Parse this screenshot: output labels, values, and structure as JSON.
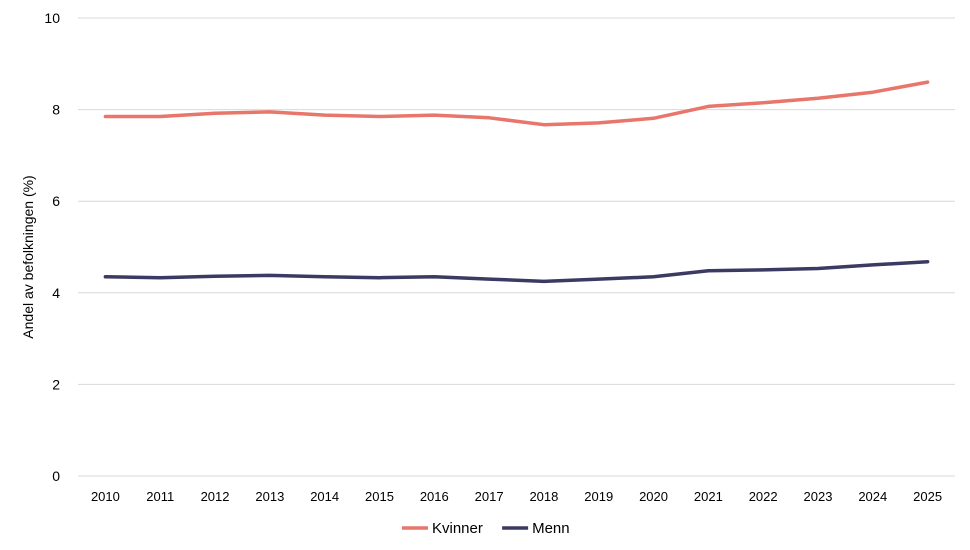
{
  "chart_data": {
    "type": "line",
    "title": "",
    "xlabel": "",
    "ylabel": "Andel av befolkningen (%)",
    "ylim": [
      0,
      10
    ],
    "yticks": [
      "0",
      "2",
      "4",
      "6",
      "8",
      "10"
    ],
    "grid": "horizontal",
    "legend_position": "bottom",
    "categories": [
      "2010",
      "2011",
      "2012",
      "2013",
      "2014",
      "2015",
      "2016",
      "2017",
      "2018",
      "2019",
      "2020",
      "2021",
      "2022",
      "2023",
      "2024",
      "2025"
    ],
    "series": [
      {
        "name": "Kvinner",
        "color": "#E8766B",
        "values": [
          7.85,
          7.85,
          7.92,
          7.95,
          7.88,
          7.85,
          7.88,
          7.82,
          7.67,
          7.71,
          7.81,
          8.07,
          8.15,
          8.25,
          8.38,
          8.6
        ]
      },
      {
        "name": "Menn",
        "color": "#3B3A63",
        "values": [
          4.35,
          4.33,
          4.36,
          4.38,
          4.35,
          4.33,
          4.35,
          4.3,
          4.25,
          4.3,
          4.35,
          4.48,
          4.5,
          4.53,
          4.61,
          4.68
        ]
      }
    ]
  }
}
